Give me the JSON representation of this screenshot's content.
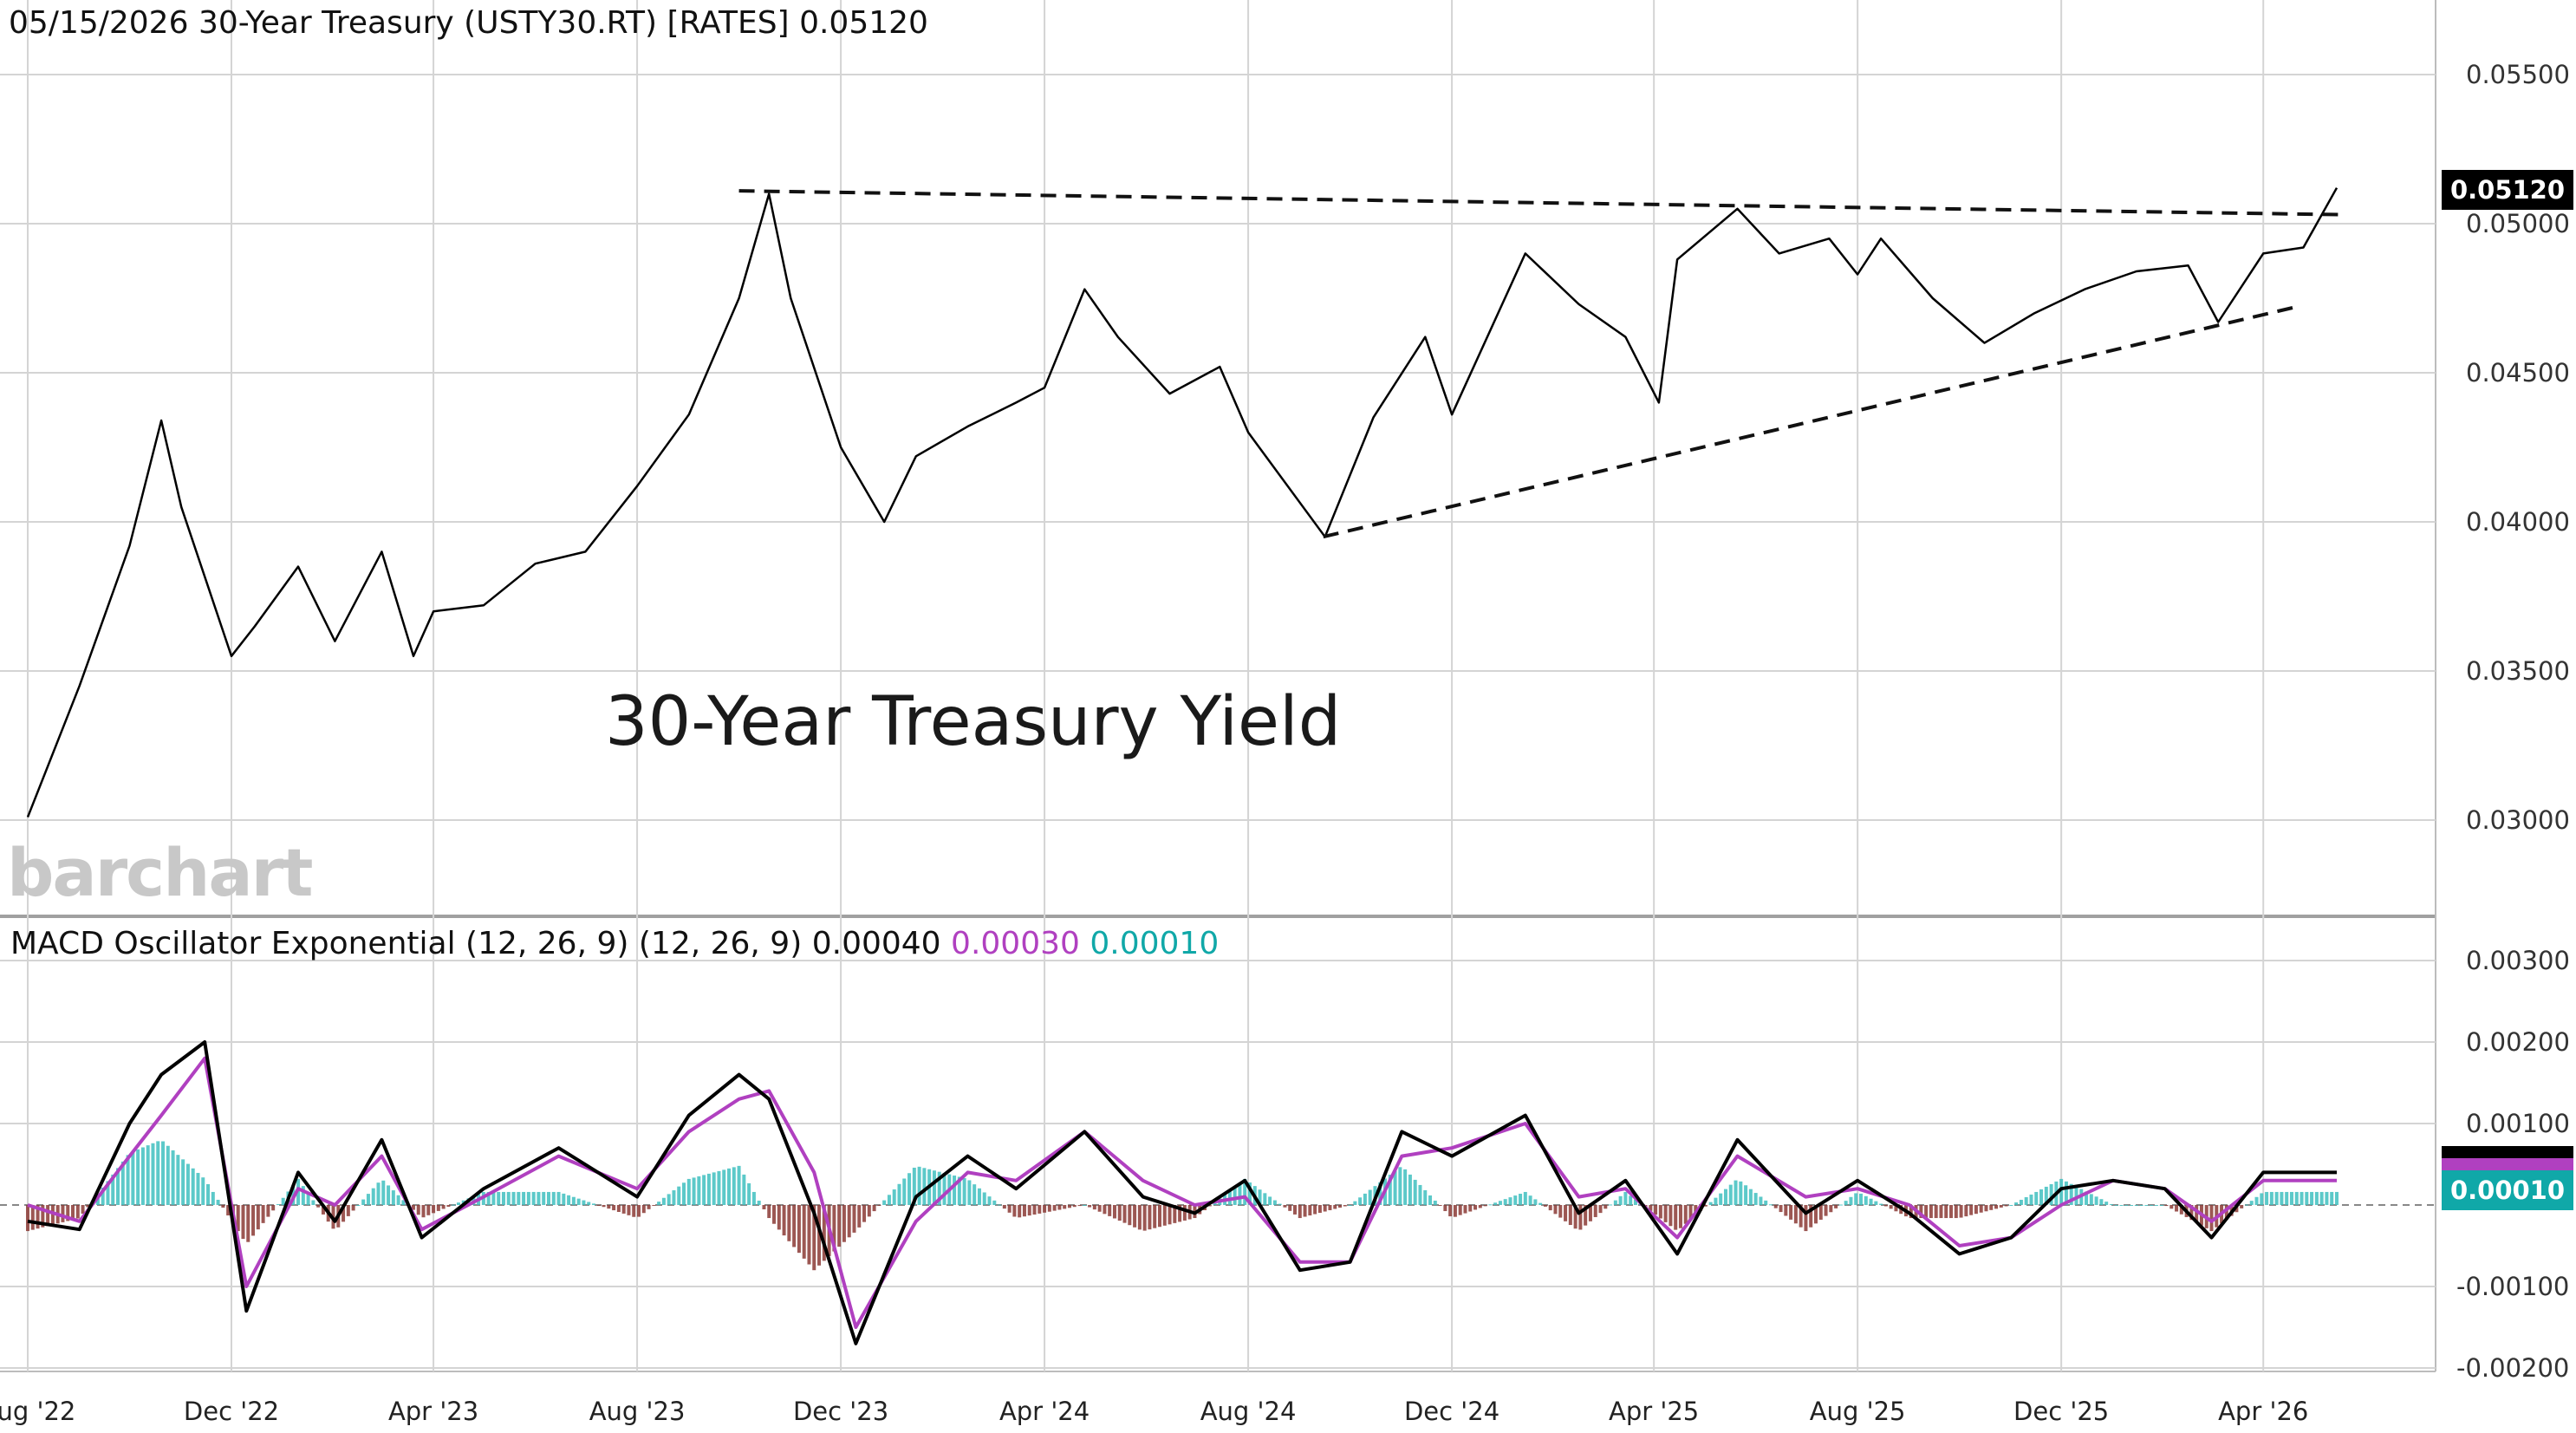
{
  "header": {
    "date": "05/15/2026",
    "symbol_desc": "30-Year Treasury (USTY30.RT) [RATES]",
    "last": "0.05120"
  },
  "macd_header": {
    "label": "MACD Oscillator Exponential (12, 26, 9)",
    "params": "(12, 26, 9)",
    "macd_value": "0.00040",
    "signal_value": "0.00030",
    "hist_value": "0.00010"
  },
  "annotation": "30-Year Treasury Yield",
  "watermark": "barchart",
  "price_badge": "0.05120",
  "macd_badge": "0.00010",
  "colors": {
    "price_line": "#000000",
    "macd_line": "#000000",
    "signal_line": "#b040c0",
    "hist_positive": "#3fbfbf",
    "hist_negative": "#8b3a35",
    "grid": "#d4d4d4"
  },
  "chart_data": [
    {
      "type": "line",
      "y_tick_labels": [
        "0.05500",
        "0.05000",
        "0.04500",
        "0.04000",
        "0.03500",
        "0.03000"
      ],
      "x_tick_labels": [
        "Aug '22",
        "Dec '22",
        "Apr '23",
        "Aug '23",
        "Dec '23",
        "Apr '24",
        "Aug '24",
        "Dec '24",
        "Apr '25",
        "Aug '25",
        "Dec '25",
        "Apr '26"
      ],
      "ylim": [
        0.0285,
        0.0565
      ],
      "x": [
        "2022-08-01",
        "2022-09-01",
        "2022-10-01",
        "2022-10-20",
        "2022-11-01",
        "2022-12-01",
        "2022-12-15",
        "2023-01-10",
        "2023-02-01",
        "2023-03-01",
        "2023-03-20",
        "2023-04-01",
        "2023-05-01",
        "2023-06-01",
        "2023-07-01",
        "2023-08-01",
        "2023-09-01",
        "2023-10-01",
        "2023-10-19",
        "2023-11-01",
        "2023-12-01",
        "2023-12-27",
        "2024-01-15",
        "2024-02-15",
        "2024-03-15",
        "2024-04-01",
        "2024-04-25",
        "2024-05-15",
        "2024-06-15",
        "2024-07-15",
        "2024-08-01",
        "2024-09-16",
        "2024-10-15",
        "2024-11-15",
        "2024-12-01",
        "2025-01-14",
        "2025-02-15",
        "2025-03-15",
        "2025-04-04",
        "2025-04-15",
        "2025-05-21",
        "2025-06-15",
        "2025-07-15",
        "2025-08-01",
        "2025-08-15",
        "2025-09-15",
        "2025-10-16",
        "2025-11-15",
        "2025-12-15",
        "2026-01-15",
        "2026-02-15",
        "2026-03-05",
        "2026-04-01",
        "2026-04-25",
        "2026-05-15"
      ],
      "series": [
        {
          "values": [
            0.0301,
            0.0345,
            0.0392,
            0.0434,
            0.0405,
            0.0355,
            0.0365,
            0.0385,
            0.036,
            0.039,
            0.0355,
            0.037,
            0.0372,
            0.0386,
            0.039,
            0.0412,
            0.0436,
            0.0475,
            0.051,
            0.0475,
            0.0425,
            0.04,
            0.0422,
            0.0432,
            0.044,
            0.0445,
            0.0478,
            0.0462,
            0.0443,
            0.0452,
            0.043,
            0.0395,
            0.0435,
            0.0462,
            0.0436,
            0.049,
            0.0473,
            0.0462,
            0.044,
            0.0488,
            0.0505,
            0.049,
            0.0495,
            0.0483,
            0.0495,
            0.0475,
            0.046,
            0.047,
            0.0478,
            0.0484,
            0.0486,
            0.0467,
            0.049,
            0.0492,
            0.0512
          ]
        }
      ],
      "trendlines": [
        {
          "x": [
            "2023-10-01",
            "2026-05-20"
          ],
          "y": [
            0.0511,
            0.0503
          ]
        },
        {
          "x": [
            "2024-09-15",
            "2026-04-20"
          ],
          "y": [
            0.0395,
            0.0472
          ]
        }
      ]
    },
    {
      "type": "line",
      "title": "MACD Oscillator Exponential (12, 26, 9)",
      "y_tick_labels": [
        "0.00300",
        "0.00200",
        "0.00100",
        "-0.00100",
        "-0.00200"
      ],
      "ylim": [
        -0.0021,
        0.0031
      ],
      "x": [
        "2022-08-01",
        "2022-09-01",
        "2022-10-01",
        "2022-10-20",
        "2022-11-15",
        "2022-12-10",
        "2023-01-10",
        "2023-02-01",
        "2023-03-01",
        "2023-03-25",
        "2023-05-01",
        "2023-06-15",
        "2023-08-01",
        "2023-09-01",
        "2023-10-01",
        "2023-10-19",
        "2023-11-15",
        "2023-12-10",
        "2024-01-15",
        "2024-02-15",
        "2024-03-15",
        "2024-04-25",
        "2024-05-30",
        "2024-06-30",
        "2024-07-30",
        "2024-09-01",
        "2024-10-01",
        "2024-11-01",
        "2024-12-01",
        "2025-01-14",
        "2025-02-15",
        "2025-03-15",
        "2025-04-15",
        "2025-05-21",
        "2025-07-01",
        "2025-08-01",
        "2025-09-01",
        "2025-10-01",
        "2025-11-01",
        "2025-12-01",
        "2026-01-01",
        "2026-02-01",
        "2026-03-01",
        "2026-04-01",
        "2026-05-15"
      ],
      "series": [
        {
          "name": "MACD",
          "values": [
            -0.0002,
            -0.0003,
            0.001,
            0.0016,
            0.002,
            -0.0013,
            0.0004,
            -0.0002,
            0.0008,
            -0.0004,
            0.0002,
            0.0007,
            0.0001,
            0.0011,
            0.0016,
            0.0013,
            -0.0001,
            -0.0017,
            0.0001,
            0.0006,
            0.0002,
            0.0009,
            0.0001,
            -0.0001,
            0.0003,
            -0.0008,
            -0.0007,
            0.0009,
            0.0006,
            0.0011,
            -0.0001,
            0.0003,
            -0.0006,
            0.0008,
            -0.0001,
            0.0003,
            -0.0001,
            -0.0006,
            -0.0004,
            0.0002,
            0.0003,
            0.0002,
            -0.0004,
            0.0004,
            0.0004
          ]
        },
        {
          "name": "Signal",
          "values": [
            0.0,
            -0.0002,
            0.0006,
            0.0011,
            0.0018,
            -0.001,
            0.0002,
            0.0,
            0.0006,
            -0.0003,
            0.0001,
            0.0006,
            0.0002,
            0.0009,
            0.0013,
            0.0014,
            0.0004,
            -0.0015,
            -0.0002,
            0.0004,
            0.0003,
            0.0009,
            0.0003,
            0.0,
            0.0001,
            -0.0007,
            -0.0007,
            0.0006,
            0.0007,
            0.001,
            0.0001,
            0.0002,
            -0.0004,
            0.0006,
            0.0001,
            0.0002,
            0.0,
            -0.0005,
            -0.0004,
            0.0,
            0.0003,
            0.0002,
            -0.0002,
            0.0003,
            0.0003
          ]
        }
      ]
    }
  ]
}
